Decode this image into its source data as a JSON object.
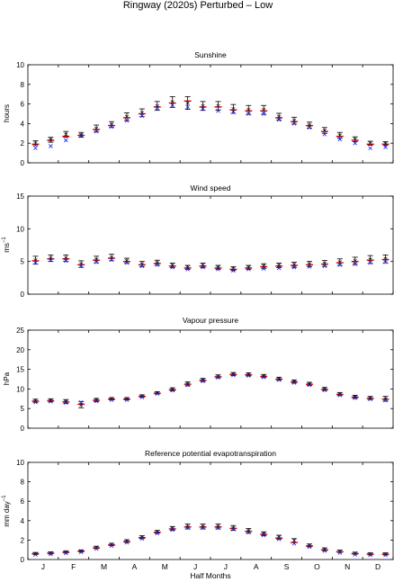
{
  "figure": {
    "title": "Ringway (2020s) Perturbed – Low",
    "xlabel": "Half Months",
    "month_labels": [
      "J",
      "F",
      "M",
      "A",
      "M",
      "J",
      "J",
      "A",
      "S",
      "O",
      "N",
      "D"
    ]
  },
  "colors": {
    "mean_marker": "#e00000",
    "obs_cross": "#1a1aff",
    "alt_cross": "#222222",
    "axes": "#000000"
  },
  "chart_data": [
    {
      "type": "scatter",
      "title": "Sunshine",
      "ylabel": "hours",
      "ylim": [
        0,
        10
      ],
      "yticks": [
        0,
        2,
        4,
        6,
        8,
        10
      ],
      "x": [
        1,
        2,
        3,
        4,
        5,
        6,
        7,
        8,
        9,
        10,
        11,
        12,
        13,
        14,
        15,
        16,
        17,
        18,
        19,
        20,
        21,
        22,
        23,
        24
      ],
      "series": [
        {
          "values": [
            1.9,
            2.3,
            2.7,
            2.8,
            3.4,
            3.8,
            4.6,
            5.0,
            5.7,
            6.1,
            6.3,
            5.7,
            5.7,
            5.4,
            5.3,
            5.3,
            4.6,
            4.2,
            3.8,
            3.2,
            2.7,
            2.3,
            1.9,
            1.9
          ]
        },
        {
          "values": [
            2.0,
            2.35,
            2.9,
            2.85,
            3.5,
            3.9,
            4.7,
            5.1,
            5.8,
            6.2,
            6.1,
            5.8,
            5.8,
            5.5,
            5.4,
            5.4,
            4.7,
            4.3,
            3.85,
            3.3,
            2.8,
            2.4,
            2.0,
            1.95
          ]
        },
        {
          "values": [
            1.5,
            1.7,
            2.3,
            2.8,
            3.2,
            3.7,
            4.3,
            4.8,
            5.6,
            5.9,
            5.7,
            5.5,
            5.3,
            5.2,
            5.0,
            5.0,
            4.4,
            4.0,
            3.6,
            2.9,
            2.4,
            2.0,
            1.5,
            1.6
          ]
        }
      ],
      "error": [
        0.25,
        0.25,
        0.3,
        0.25,
        0.35,
        0.3,
        0.4,
        0.4,
        0.45,
        0.55,
        0.65,
        0.45,
        0.45,
        0.45,
        0.45,
        0.45,
        0.35,
        0.35,
        0.3,
        0.3,
        0.3,
        0.25,
        0.2,
        0.2
      ]
    },
    {
      "type": "scatter",
      "title": "Wind speed",
      "ylabel": "ms",
      "ylabel_sup": "−1",
      "ylim": [
        0,
        15
      ],
      "yticks": [
        0,
        5,
        10,
        15
      ],
      "x": [
        1,
        2,
        3,
        4,
        5,
        6,
        7,
        8,
        9,
        10,
        11,
        12,
        13,
        14,
        15,
        16,
        17,
        18,
        19,
        20,
        21,
        22,
        23,
        24
      ],
      "series": [
        {
          "values": [
            5.1,
            5.4,
            5.4,
            4.5,
            5.2,
            5.5,
            5.0,
            4.5,
            4.7,
            4.3,
            4.0,
            4.3,
            4.0,
            3.8,
            4.0,
            4.2,
            4.3,
            4.4,
            4.5,
            4.6,
            4.8,
            5.0,
            5.2,
            5.3
          ]
        },
        {
          "values": [
            5.2,
            5.5,
            5.5,
            4.6,
            5.3,
            5.6,
            5.1,
            4.6,
            4.8,
            4.4,
            4.1,
            4.4,
            4.1,
            3.9,
            4.1,
            4.3,
            4.4,
            4.5,
            4.6,
            4.7,
            4.9,
            5.1,
            5.3,
            5.4
          ]
        },
        {
          "values": [
            4.8,
            5.2,
            5.1,
            4.3,
            4.9,
            5.3,
            4.8,
            4.3,
            4.5,
            4.1,
            3.8,
            4.1,
            3.8,
            3.6,
            3.8,
            3.9,
            4.0,
            4.1,
            4.2,
            4.3,
            4.5,
            4.6,
            4.8,
            4.9
          ]
        }
      ],
      "error": [
        0.6,
        0.5,
        0.5,
        0.5,
        0.5,
        0.5,
        0.4,
        0.4,
        0.4,
        0.35,
        0.3,
        0.35,
        0.3,
        0.3,
        0.3,
        0.35,
        0.35,
        0.4,
        0.4,
        0.45,
        0.5,
        0.55,
        0.6,
        0.6
      ]
    },
    {
      "type": "scatter",
      "title": "Vapour pressure",
      "ylabel": "hPa",
      "ylim": [
        0,
        25
      ],
      "yticks": [
        0,
        5,
        10,
        15,
        20,
        25
      ],
      "x": [
        1,
        2,
        3,
        4,
        5,
        6,
        7,
        8,
        9,
        10,
        11,
        12,
        13,
        14,
        15,
        16,
        17,
        18,
        19,
        20,
        21,
        22,
        23,
        24
      ],
      "series": [
        {
          "values": [
            6.9,
            7.0,
            6.7,
            6.1,
            7.1,
            7.4,
            7.4,
            8.1,
            8.9,
            9.8,
            11.2,
            12.2,
            13.1,
            13.7,
            13.6,
            13.2,
            12.5,
            11.8,
            11.2,
            9.9,
            8.6,
            7.9,
            7.6,
            7.4
          ]
        },
        {
          "values": [
            7.0,
            7.1,
            6.8,
            6.0,
            7.2,
            7.5,
            7.5,
            8.2,
            9.0,
            9.9,
            11.3,
            12.3,
            13.2,
            13.8,
            13.7,
            13.3,
            12.6,
            11.9,
            11.3,
            10.0,
            8.7,
            8.0,
            7.7,
            7.5
          ]
        },
        {
          "values": [
            6.6,
            6.8,
            6.5,
            6.6,
            6.9,
            7.2,
            7.2,
            7.9,
            8.8,
            9.6,
            11.0,
            12.0,
            12.9,
            13.5,
            13.4,
            13.0,
            12.3,
            11.6,
            11.0,
            9.7,
            8.4,
            7.7,
            7.4,
            7.1
          ]
        }
      ],
      "error": [
        0.4,
        0.4,
        0.5,
        0.8,
        0.4,
        0.3,
        0.3,
        0.3,
        0.3,
        0.4,
        0.5,
        0.4,
        0.4,
        0.4,
        0.4,
        0.4,
        0.4,
        0.4,
        0.4,
        0.4,
        0.4,
        0.4,
        0.4,
        0.6
      ]
    },
    {
      "type": "scatter",
      "title": "Reference potential evapotranspiration",
      "ylabel": "mm day",
      "ylabel_sup": "−1",
      "ylim": [
        0,
        10
      ],
      "yticks": [
        0,
        2,
        4,
        6,
        8,
        10
      ],
      "x": [
        1,
        2,
        3,
        4,
        5,
        6,
        7,
        8,
        9,
        10,
        11,
        12,
        13,
        14,
        15,
        16,
        17,
        18,
        19,
        20,
        21,
        22,
        23,
        24
      ],
      "series": [
        {
          "values": [
            0.6,
            0.65,
            0.75,
            0.85,
            1.2,
            1.5,
            1.85,
            2.25,
            2.8,
            3.15,
            3.35,
            3.35,
            3.35,
            3.2,
            2.9,
            2.6,
            2.2,
            1.75,
            1.4,
            1.0,
            0.8,
            0.6,
            0.55,
            0.55
          ]
        },
        {
          "values": [
            0.62,
            0.68,
            0.78,
            0.88,
            1.25,
            1.55,
            1.9,
            2.3,
            2.85,
            3.2,
            3.4,
            3.4,
            3.4,
            3.25,
            2.95,
            2.65,
            2.3,
            1.95,
            1.45,
            1.05,
            0.85,
            0.65,
            0.58,
            0.58
          ]
        },
        {
          "values": [
            0.5,
            0.55,
            0.65,
            0.75,
            1.1,
            1.4,
            1.75,
            2.15,
            2.7,
            3.05,
            3.25,
            3.25,
            3.25,
            3.1,
            2.8,
            2.5,
            2.1,
            1.65,
            1.3,
            0.9,
            0.7,
            0.5,
            0.45,
            0.45
          ]
        }
      ],
      "error": [
        0.1,
        0.1,
        0.1,
        0.1,
        0.12,
        0.12,
        0.14,
        0.15,
        0.15,
        0.2,
        0.25,
        0.25,
        0.25,
        0.25,
        0.25,
        0.2,
        0.2,
        0.2,
        0.15,
        0.15,
        0.12,
        0.1,
        0.1,
        0.1
      ]
    }
  ]
}
